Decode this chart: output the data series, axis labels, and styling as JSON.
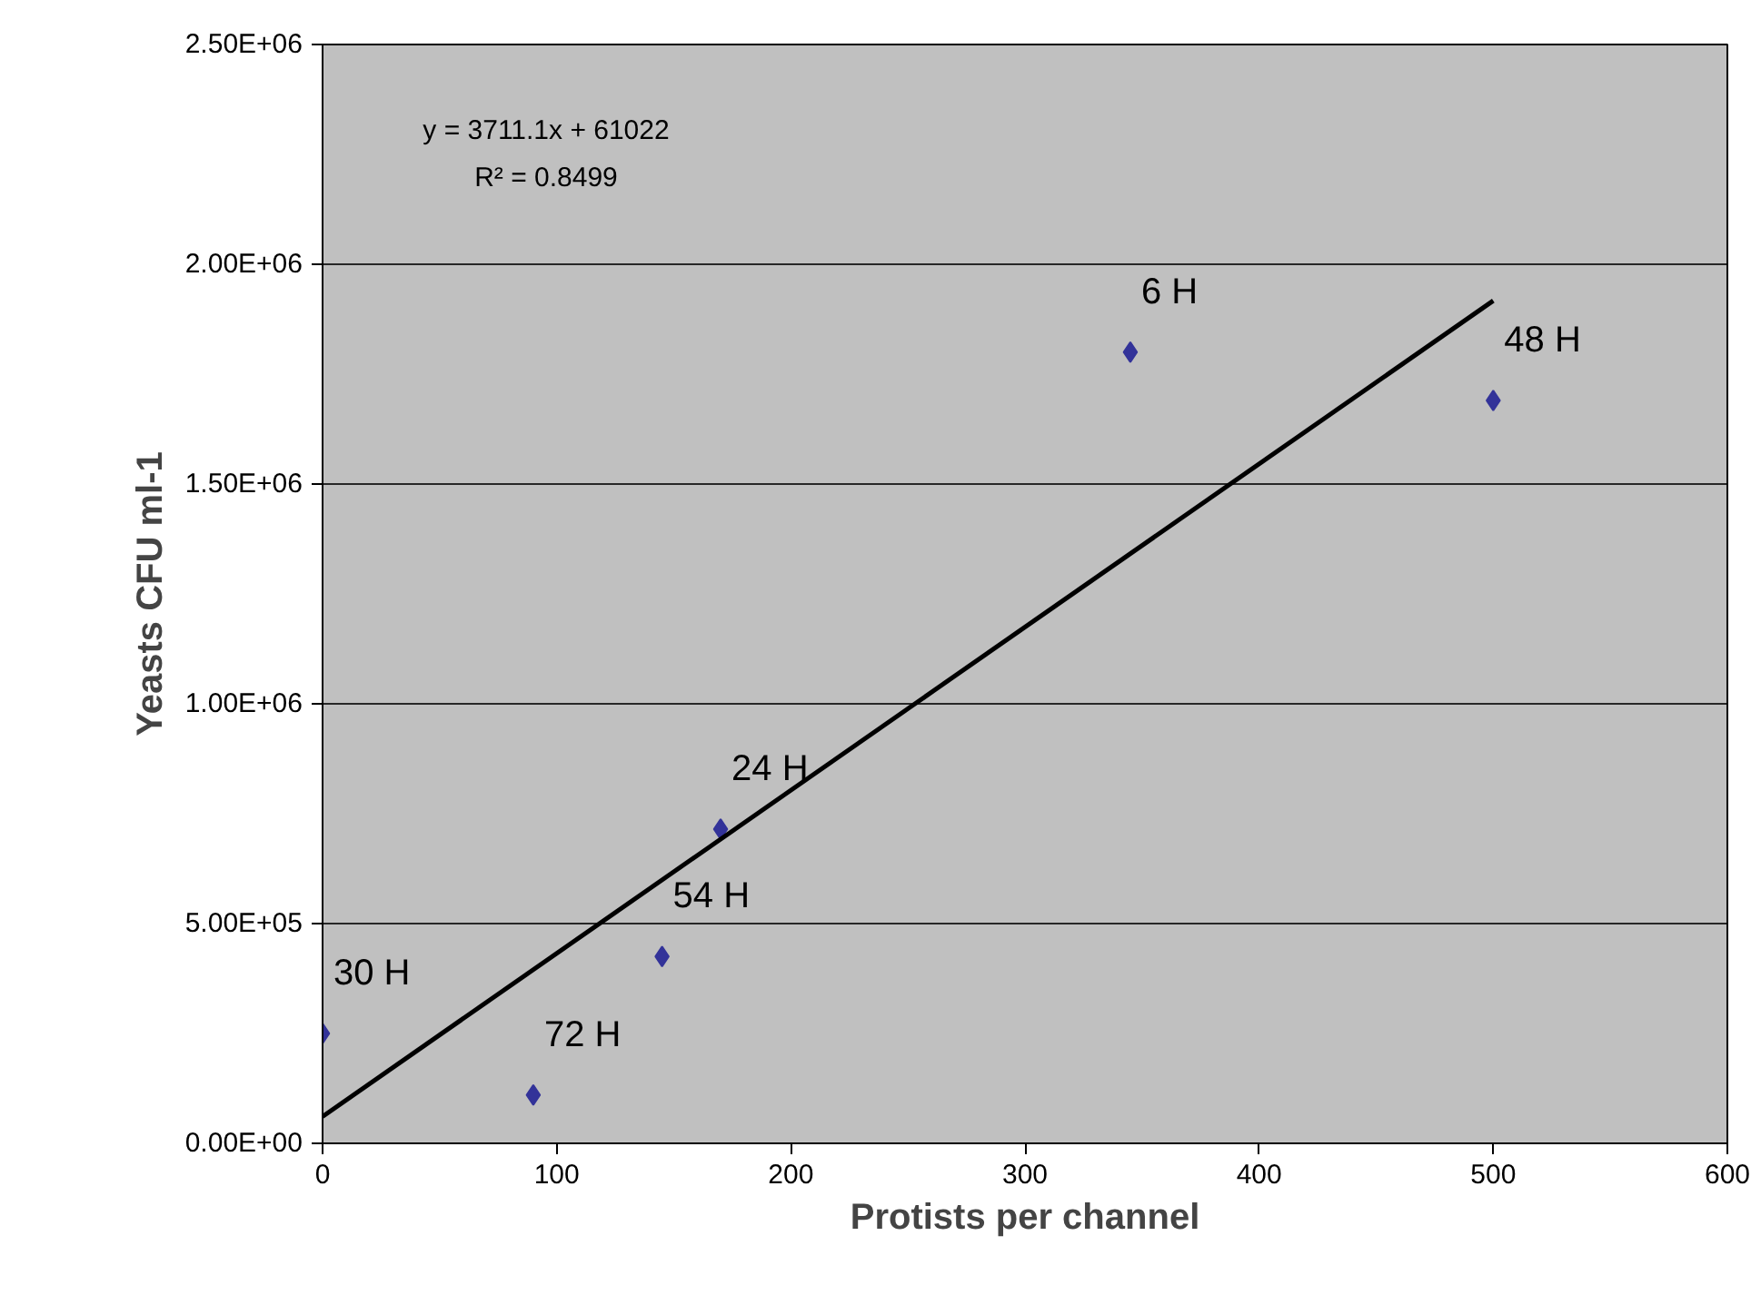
{
  "chart_data": {
    "type": "scatter",
    "xlabel": "Protists per channel",
    "ylabel": "Yeasts CFU ml-1",
    "series": [
      {
        "color": "#333399",
        "x": [
          0,
          90,
          145,
          170,
          345,
          500
        ],
        "values": [
          250000,
          110000,
          425000,
          715000,
          1800000,
          1690000
        ]
      },
      {
        "type": "line",
        "marker": "none",
        "color": "#000000",
        "x": [
          0,
          500
        ],
        "values": [
          61000,
          1917000
        ]
      }
    ],
    "annotations": [
      "y = 3711.1x + 61022",
      "R² = 0.8499",
      {
        "text": "30 H",
        "x": 0,
        "y": 250000
      },
      {
        "text": "72 H",
        "x": 90,
        "y": 110000
      },
      {
        "text": "54 H",
        "x": 145,
        "y": 425000
      },
      {
        "text": "24 H",
        "x": 170,
        "y": 715000
      },
      {
        "text": "6 H",
        "x": 345,
        "y": 1800000
      },
      {
        "text": "48 H",
        "x": 500,
        "y": 1690000
      }
    ],
    "xlim": [
      0,
      600
    ],
    "xticks": [
      0,
      100,
      200,
      300,
      400,
      500,
      600
    ],
    "ylim": [
      0,
      2500000
    ],
    "yticks": [
      {
        "value": 0,
        "label": "0.00E+00"
      },
      {
        "value": 500000,
        "label": "5.00E+05"
      },
      {
        "value": 1000000,
        "label": "1.00E+06"
      },
      {
        "value": 1500000,
        "label": "1.50E+06"
      },
      {
        "value": 2000000,
        "label": "2.00E+06"
      },
      {
        "value": 2500000,
        "label": "2.50E+06"
      }
    ],
    "grid": "y",
    "marker": "diamond",
    "line_style": "solid"
  }
}
